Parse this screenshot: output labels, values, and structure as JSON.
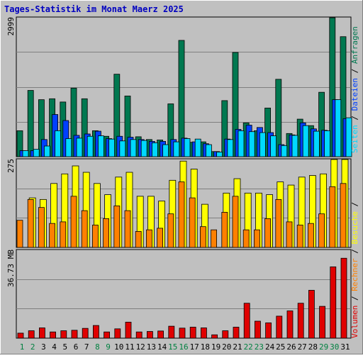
{
  "title": "Tages-Statistik im Monat Maerz 2025",
  "colors": {
    "page_bg": "#c0c0c0",
    "plot_bg": "#c0c0c0",
    "title": "#0000c0",
    "anfragen": "#007850",
    "dateien": "#0040ff",
    "seiten": "#00d8ff",
    "besuche": "#ffff00",
    "rechner": "#ff8000",
    "volumen": "#e00000",
    "weekday_label": "#000000",
    "weekend_label": "#008040",
    "grid": "#7f7f7f"
  },
  "chart_data": [
    {
      "type": "bar",
      "panel": "hits",
      "ymax_label": "2999",
      "ylim": [
        0,
        2999
      ],
      "right_label": {
        "seiten": "Seiten",
        "sep1": " / ",
        "dateien": "Dateien",
        "sep2": " / ",
        "anfragen": "Anfragen"
      },
      "categories": [
        "1",
        "2",
        "3",
        "4",
        "5",
        "6",
        "7",
        "8",
        "9",
        "10",
        "11",
        "12",
        "13",
        "14",
        "15",
        "16",
        "17",
        "18",
        "19",
        "20",
        "21",
        "22",
        "23",
        "24",
        "25",
        "26",
        "27",
        "28",
        "29",
        "30",
        "31"
      ],
      "weekend_days": [
        "1",
        "2",
        "8",
        "9",
        "15",
        "16",
        "22",
        "23",
        "29",
        "30"
      ],
      "series": [
        {
          "name": "Anfragen",
          "color_key": "anfragen",
          "values": [
            560,
            1430,
            1230,
            1250,
            1180,
            1480,
            1250,
            560,
            440,
            1780,
            1310,
            430,
            370,
            360,
            1140,
            2510,
            310,
            320,
            110,
            1210,
            2250,
            730,
            560,
            1050,
            1670,
            500,
            810,
            670,
            1390,
            2999,
            2590
          ]
        },
        {
          "name": "Dateien",
          "color_key": "dateien",
          "values": [
            130,
            130,
            370,
            910,
            780,
            460,
            490,
            550,
            390,
            440,
            420,
            370,
            330,
            330,
            370,
            400,
            320,
            280,
            110,
            380,
            590,
            680,
            630,
            520,
            260,
            470,
            730,
            600,
            570,
            1230,
            820
          ]
        },
        {
          "name": "Seiten",
          "color_key": "seiten",
          "values": [
            130,
            160,
            230,
            560,
            390,
            400,
            440,
            450,
            380,
            340,
            370,
            350,
            300,
            260,
            320,
            390,
            380,
            260,
            100,
            370,
            560,
            540,
            520,
            450,
            240,
            460,
            670,
            550,
            560,
            1230,
            840
          ]
        }
      ]
    },
    {
      "type": "bar",
      "panel": "visits",
      "ymax_label": "275",
      "ylim": [
        0,
        275
      ],
      "series": [
        {
          "name": "Besuche",
          "color_key": "besuche",
          "values": [
            0,
            155,
            150,
            200,
            230,
            255,
            235,
            200,
            165,
            220,
            235,
            160,
            160,
            145,
            210,
            270,
            245,
            135,
            0,
            170,
            215,
            170,
            170,
            165,
            205,
            195,
            220,
            225,
            230,
            275,
            275
          ]
        },
        {
          "name": "Rechner",
          "color_key": "rechner",
          "values": [
            85,
            150,
            125,
            75,
            80,
            160,
            115,
            70,
            90,
            130,
            115,
            50,
            55,
            60,
            105,
            205,
            155,
            65,
            55,
            110,
            160,
            55,
            55,
            90,
            150,
            80,
            70,
            75,
            105,
            190,
            200
          ]
        }
      ]
    },
    {
      "type": "bar",
      "panel": "volume",
      "ymax_label": "36.73 MB",
      "ylim": [
        0,
        36.73
      ],
      "right_label": {
        "volumen": "Volumen",
        "sep1": " / ",
        "rechner": "Rechner",
        "sep2": " / ",
        "besuche": "Besuche",
        "sep3": " / "
      },
      "series": [
        {
          "name": "Volumen",
          "color_key": "volumen",
          "values": [
            2.1,
            3.1,
            4.3,
            2.6,
            3.1,
            3.3,
            4.1,
            5.3,
            2.6,
            3.9,
            6.7,
            2.6,
            2.8,
            3.0,
            5.0,
            4.2,
            4.6,
            4.3,
            1.4,
            3.1,
            4.6,
            14.6,
            7.1,
            6.4,
            9.2,
            11.4,
            14.6,
            20.0,
            13.3,
            29.8,
            33.4
          ]
        }
      ]
    }
  ]
}
